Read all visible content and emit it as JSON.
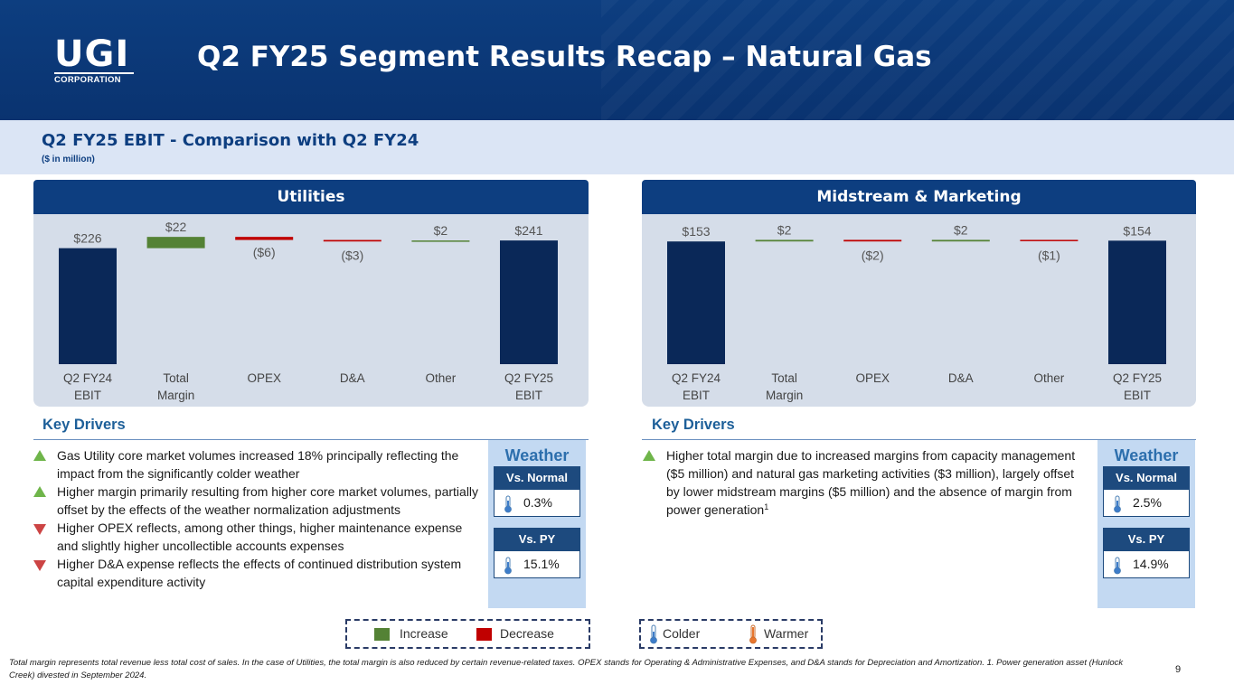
{
  "header": {
    "logo_big": "UGI",
    "logo_small": "CORPORATION",
    "title": "Q2 FY25 Segment Results Recap – Natural Gas"
  },
  "band": {
    "title": "Q2 FY25 EBIT - Comparison with Q2 FY24",
    "subtitle": "($ in million)"
  },
  "colors": {
    "navy": "#0a2858",
    "increase": "#548235",
    "decrease": "#c00000",
    "connector": "#8fbc8f"
  },
  "chart_data": [
    {
      "type": "bar",
      "title": "Utilities",
      "categories": [
        "Q2 FY24\nEBIT",
        "Total\nMargin",
        "OPEX",
        "D&A",
        "Other",
        "Q2 FY25\nEBIT"
      ],
      "values": [
        226,
        22,
        -6,
        -3,
        2,
        241
      ],
      "kinds": [
        "total",
        "increase",
        "decrease",
        "decrease",
        "increase",
        "total"
      ],
      "labels": [
        "$226",
        "$22",
        "($6)",
        "($3)",
        "$2",
        "$241"
      ],
      "ylim": [
        0,
        250
      ]
    },
    {
      "type": "bar",
      "title": "Midstream & Marketing",
      "categories": [
        "Q2 FY24\nEBIT",
        "Total\nMargin",
        "OPEX",
        "D&A",
        "Other",
        "Q2 FY25\nEBIT"
      ],
      "values": [
        153,
        2,
        -2,
        2,
        -1,
        154
      ],
      "kinds": [
        "total",
        "increase",
        "decrease",
        "increase",
        "decrease",
        "total"
      ],
      "labels": [
        "$153",
        "$2",
        "($2)",
        "$2",
        "($1)",
        "$154"
      ],
      "ylim": [
        0,
        160
      ]
    }
  ],
  "left_drivers": {
    "title": "Key Drivers",
    "bullets": [
      {
        "dir": "up",
        "text": "Gas Utility core market volumes increased 18% principally reflecting the impact from the significantly colder weather"
      },
      {
        "dir": "up",
        "text": "Higher margin primarily resulting from higher core market volumes, partially offset by the effects of the weather normalization adjustments"
      },
      {
        "dir": "down",
        "text": "Higher OPEX reflects, among other things, higher maintenance expense and slightly higher uncollectible accounts expenses"
      },
      {
        "dir": "down",
        "text": "Higher D&A expense reflects the effects of continued distribution system capital expenditure activity"
      }
    ],
    "weather": {
      "title": "Weather",
      "normal_label": "Vs. Normal",
      "normal_value": "0.3%",
      "normal_type": "colder",
      "py_label": "Vs. PY",
      "py_value": "15.1%",
      "py_type": "colder"
    }
  },
  "right_drivers": {
    "title": "Key Drivers",
    "bullet_dir": "up",
    "bullet_text": "Higher total margin due to increased margins from capacity management ($5 million) and natural gas marketing activities ($3 million), largely offset by lower midstream margins ($5 million) and the absence of margin from power generation",
    "bullet_sup": "1",
    "weather": {
      "title": "Weather",
      "normal_label": "Vs. Normal",
      "normal_value": "2.5%",
      "normal_type": "colder",
      "py_label": "Vs. PY",
      "py_value": "14.9%",
      "py_type": "colder"
    }
  },
  "legend_bars": {
    "increase": "Increase",
    "decrease": "Decrease"
  },
  "legend_weather": {
    "colder": "Colder",
    "warmer": "Warmer"
  },
  "footnote": "Total margin represents total revenue less total cost of sales. In the case of Utilities, the total margin is also reduced by certain revenue-related taxes. OPEX stands for Operating & Administrative Expenses, and D&A stands for Depreciation and Amortization. 1. Power generation asset (Hunlock Creek) divested in September 2024.",
  "page_number": "9"
}
